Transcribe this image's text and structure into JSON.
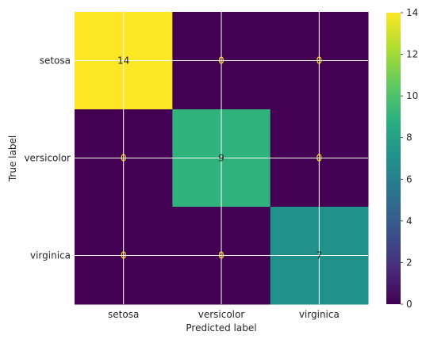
{
  "chart_data": {
    "type": "heatmap",
    "title": "",
    "xlabel": "Predicted label",
    "ylabel": "True label",
    "x_categories": [
      "setosa",
      "versicolor",
      "virginica"
    ],
    "y_categories": [
      "setosa",
      "versicolor",
      "virginica"
    ],
    "values": [
      [
        14,
        0,
        0
      ],
      [
        0,
        9,
        0
      ],
      [
        0,
        0,
        7
      ]
    ],
    "colormap": "viridis",
    "colorbar": {
      "min": 0,
      "max": 14,
      "ticks": [
        0,
        2,
        4,
        6,
        8,
        10,
        12,
        14
      ]
    },
    "grid": true
  }
}
